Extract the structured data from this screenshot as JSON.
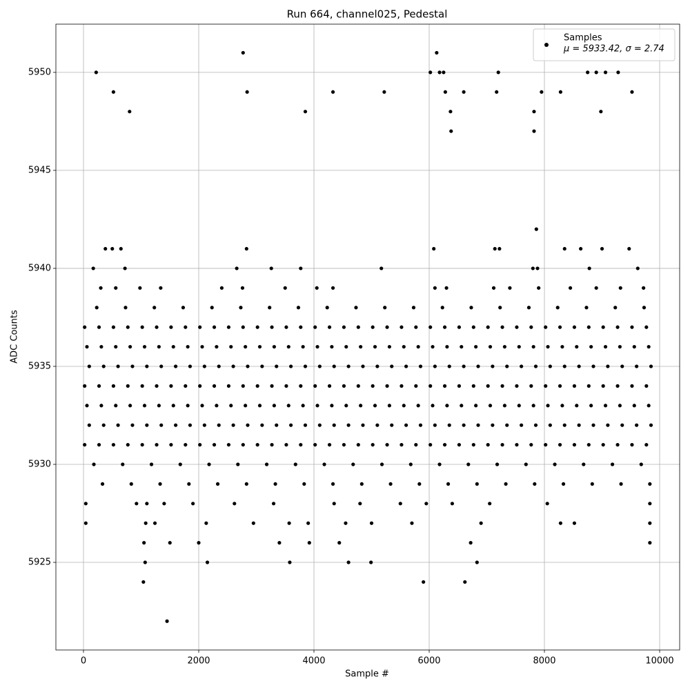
{
  "chart_data": {
    "type": "scatter",
    "title": "Run 664, channel025, Pedestal",
    "xlabel": "Sample #",
    "ylabel": "ADC Counts",
    "xlim": [
      -479,
      10347
    ],
    "ylim": [
      5920.53,
      5952.46
    ],
    "xticks": [
      0,
      2000,
      4000,
      6000,
      8000,
      10000
    ],
    "yticks": [
      5925,
      5930,
      5935,
      5940,
      5945,
      5950
    ],
    "grid": true,
    "legend": "upper right",
    "series": [
      {
        "name": "Samples",
        "stats": "μ = 5933.42, σ = 2.74",
        "color": "#000000",
        "x": [
          20,
          270,
          520,
          770,
          1020,
          1270,
          1520,
          1770,
          2020,
          2270,
          2520,
          2770,
          3020,
          3270,
          3520,
          3770,
          4020,
          4270,
          4520,
          4770,
          5020,
          5270,
          5520,
          5770,
          6020,
          6270,
          6520,
          6770,
          7020,
          7270,
          7520,
          7770,
          8020,
          8270,
          8520,
          8770,
          9020,
          9270,
          9520,
          9770,
          100,
          350,
          600,
          850,
          1100,
          1350,
          1600,
          1850,
          2100,
          2350,
          2600,
          2850,
          3100,
          3350,
          3600,
          3850,
          4100,
          4350,
          4600,
          4850,
          5100,
          5350,
          5600,
          5850,
          6100,
          6350,
          6600,
          6850,
          7100,
          7350,
          7600,
          7850,
          8100,
          8350,
          8600,
          8850,
          9100,
          9350,
          9600,
          9850,
          60,
          310,
          560,
          810,
          1060,
          1310,
          1560,
          1810,
          2060,
          2310,
          2560,
          2810,
          3060,
          3310,
          3560,
          3810,
          4060,
          4310,
          4560,
          4810,
          5060,
          5310,
          5560,
          5810,
          6060,
          6310,
          6560,
          6810,
          7060,
          7310,
          7560,
          7810,
          8060,
          8310,
          8560,
          8810,
          9060,
          9310,
          9560,
          9810,
          20,
          270,
          520,
          770,
          1020,
          1270,
          1520,
          1770,
          2020,
          2270,
          2520,
          2770,
          3020,
          3270,
          3520,
          3770,
          4020,
          4270,
          4520,
          4770,
          5020,
          5270,
          5520,
          5770,
          6020,
          6270,
          6520,
          6770,
          7020,
          7270,
          7520,
          7770,
          8020,
          8270,
          8520,
          8770,
          9020,
          9270,
          9520,
          9770,
          100,
          350,
          600,
          850,
          1100,
          1350,
          1600,
          1850,
          2100,
          2350,
          2600,
          2850,
          3100,
          3350,
          3600,
          3850,
          4100,
          4350,
          4600,
          4850,
          5100,
          5350,
          5600,
          5850,
          6100,
          6350,
          6600,
          6850,
          7100,
          7350,
          7600,
          7850,
          8100,
          8350,
          8600,
          8850,
          9100,
          9350,
          9600,
          9850,
          60,
          310,
          560,
          810,
          1060,
          1310,
          1560,
          1810,
          2060,
          2310,
          2560,
          2810,
          3060,
          3310,
          3560,
          3810,
          4060,
          4310,
          4560,
          4810,
          5060,
          5310,
          5560,
          5810,
          6060,
          6310,
          6560,
          6810,
          7060,
          7310,
          7560,
          7810,
          8060,
          8310,
          8560,
          8810,
          9060,
          9310,
          9560,
          9810,
          20,
          270,
          520,
          770,
          1020,
          1270,
          1520,
          1770,
          2020,
          2270,
          2520,
          2770,
          3020,
          3270,
          3520,
          3770,
          4020,
          4270,
          4520,
          4770,
          5020,
          5270,
          5520,
          5770,
          6020,
          6270,
          6520,
          6770,
          7020,
          7270,
          7520,
          7770,
          8020,
          8270,
          8520,
          8770,
          9020,
          9270,
          9520,
          9770,
          180,
          680,
          1180,
          1680,
          2180,
          2680,
          3180,
          3680,
          4180,
          4680,
          5180,
          5680,
          6180,
          6680,
          7180,
          7680,
          8180,
          8680,
          9180,
          9680,
          330,
          830,
          1330,
          1830,
          2330,
          2830,
          3330,
          3830,
          4330,
          4830,
          5330,
          5830,
          6330,
          6830,
          7330,
          7830,
          8330,
          8830,
          9330,
          9830,
          230,
          730,
          1230,
          1730,
          2230,
          2730,
          3230,
          3730,
          4230,
          4730,
          5230,
          5730,
          6230,
          6730,
          7230,
          7730,
          8230,
          8730,
          9230,
          9730,
          300,
          560,
          980,
          1340,
          2400,
          2760,
          3500,
          4050,
          4330,
          6100,
          6300,
          7120,
          7400,
          7900,
          8450,
          8900,
          9320,
          9720,
          40,
          920,
          1100,
          1400,
          1900,
          2620,
          3300,
          4350,
          4800,
          5500,
          5950,
          6400,
          7050,
          8050,
          9830,
          40,
          1080,
          1240,
          2130,
          2950,
          3570,
          3900,
          4550,
          5000,
          5700,
          6900,
          8280,
          8520,
          9830,
          220,
          6020,
          6180,
          6250,
          7200,
          8750,
          8900,
          9060,
          9280,
          2770,
          6130,
          520,
          2840,
          4330,
          5220,
          6280,
          6600,
          7170,
          7950,
          8280,
          9520,
          800,
          3850,
          6370,
          7820,
          8980,
          6380,
          7820,
          7860,
          380,
          500,
          650,
          2830,
          6080,
          7140,
          7220,
          8350,
          8630,
          9000,
          9470,
          170,
          720,
          2660,
          3260,
          3770,
          5170,
          7800,
          7880,
          8780,
          9620,
          1050,
          1500,
          2000,
          3400,
          3920,
          4440,
          6720,
          9830,
          1070,
          2150,
          3580,
          4600,
          4990,
          6830,
          1040,
          5900,
          6620,
          1450
        ],
        "values": [
          5931,
          5931,
          5931,
          5931,
          5931,
          5931,
          5931,
          5931,
          5931,
          5931,
          5931,
          5931,
          5931,
          5931,
          5931,
          5931,
          5931,
          5931,
          5931,
          5931,
          5931,
          5931,
          5931,
          5931,
          5931,
          5931,
          5931,
          5931,
          5931,
          5931,
          5931,
          5931,
          5931,
          5931,
          5931,
          5931,
          5931,
          5931,
          5931,
          5931,
          5932,
          5932,
          5932,
          5932,
          5932,
          5932,
          5932,
          5932,
          5932,
          5932,
          5932,
          5932,
          5932,
          5932,
          5932,
          5932,
          5932,
          5932,
          5932,
          5932,
          5932,
          5932,
          5932,
          5932,
          5932,
          5932,
          5932,
          5932,
          5932,
          5932,
          5932,
          5932,
          5932,
          5932,
          5932,
          5932,
          5932,
          5932,
          5932,
          5932,
          5933,
          5933,
          5933,
          5933,
          5933,
          5933,
          5933,
          5933,
          5933,
          5933,
          5933,
          5933,
          5933,
          5933,
          5933,
          5933,
          5933,
          5933,
          5933,
          5933,
          5933,
          5933,
          5933,
          5933,
          5933,
          5933,
          5933,
          5933,
          5933,
          5933,
          5933,
          5933,
          5933,
          5933,
          5933,
          5933,
          5933,
          5933,
          5933,
          5933,
          5934,
          5934,
          5934,
          5934,
          5934,
          5934,
          5934,
          5934,
          5934,
          5934,
          5934,
          5934,
          5934,
          5934,
          5934,
          5934,
          5934,
          5934,
          5934,
          5934,
          5934,
          5934,
          5934,
          5934,
          5934,
          5934,
          5934,
          5934,
          5934,
          5934,
          5934,
          5934,
          5934,
          5934,
          5934,
          5934,
          5934,
          5934,
          5934,
          5934,
          5935,
          5935,
          5935,
          5935,
          5935,
          5935,
          5935,
          5935,
          5935,
          5935,
          5935,
          5935,
          5935,
          5935,
          5935,
          5935,
          5935,
          5935,
          5935,
          5935,
          5935,
          5935,
          5935,
          5935,
          5935,
          5935,
          5935,
          5935,
          5935,
          5935,
          5935,
          5935,
          5935,
          5935,
          5935,
          5935,
          5935,
          5935,
          5935,
          5935,
          5936,
          5936,
          5936,
          5936,
          5936,
          5936,
          5936,
          5936,
          5936,
          5936,
          5936,
          5936,
          5936,
          5936,
          5936,
          5936,
          5936,
          5936,
          5936,
          5936,
          5936,
          5936,
          5936,
          5936,
          5936,
          5936,
          5936,
          5936,
          5936,
          5936,
          5936,
          5936,
          5936,
          5936,
          5936,
          5936,
          5936,
          5936,
          5936,
          5936,
          5937,
          5937,
          5937,
          5937,
          5937,
          5937,
          5937,
          5937,
          5937,
          5937,
          5937,
          5937,
          5937,
          5937,
          5937,
          5937,
          5937,
          5937,
          5937,
          5937,
          5937,
          5937,
          5937,
          5937,
          5937,
          5937,
          5937,
          5937,
          5937,
          5937,
          5937,
          5937,
          5937,
          5937,
          5937,
          5937,
          5937,
          5937,
          5937,
          5937,
          5930,
          5930,
          5930,
          5930,
          5930,
          5930,
          5930,
          5930,
          5930,
          5930,
          5930,
          5930,
          5930,
          5930,
          5930,
          5930,
          5930,
          5930,
          5930,
          5930,
          5929,
          5929,
          5929,
          5929,
          5929,
          5929,
          5929,
          5929,
          5929,
          5929,
          5929,
          5929,
          5929,
          5929,
          5929,
          5929,
          5929,
          5929,
          5929,
          5929,
          5938,
          5938,
          5938,
          5938,
          5938,
          5938,
          5938,
          5938,
          5938,
          5938,
          5938,
          5938,
          5938,
          5938,
          5938,
          5938,
          5938,
          5938,
          5938,
          5938,
          5939,
          5939,
          5939,
          5939,
          5939,
          5939,
          5939,
          5939,
          5939,
          5939,
          5939,
          5939,
          5939,
          5939,
          5939,
          5939,
          5939,
          5939,
          5928,
          5928,
          5928,
          5928,
          5928,
          5928,
          5928,
          5928,
          5928,
          5928,
          5928,
          5928,
          5928,
          5928,
          5928,
          5927,
          5927,
          5927,
          5927,
          5927,
          5927,
          5927,
          5927,
          5927,
          5927,
          5927,
          5927,
          5927,
          5927,
          5950,
          5950,
          5950,
          5950,
          5950,
          5950,
          5950,
          5950,
          5950,
          5951,
          5951,
          5949,
          5949,
          5949,
          5949,
          5949,
          5949,
          5949,
          5949,
          5949,
          5949,
          5948,
          5948,
          5948,
          5948,
          5948,
          5947,
          5947,
          5942,
          5941,
          5941,
          5941,
          5941,
          5941,
          5941,
          5941,
          5941,
          5941,
          5941,
          5941,
          5940,
          5940,
          5940,
          5940,
          5940,
          5940,
          5940,
          5940,
          5940,
          5940,
          5926,
          5926,
          5926,
          5926,
          5926,
          5926,
          5926,
          5926,
          5925,
          5925,
          5925,
          5925,
          5925,
          5925,
          5924,
          5924,
          5924,
          5922
        ]
      }
    ]
  }
}
